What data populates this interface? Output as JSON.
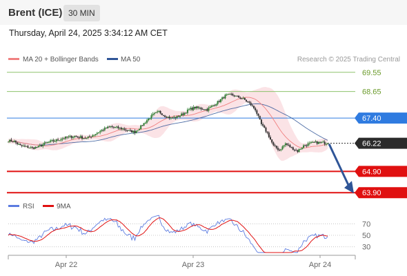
{
  "header": {
    "instrument": "Brent (ICE)",
    "timeframe": "30 MIN",
    "datetime": "Thursday, April 24, 2025 3:34:12 AM CET"
  },
  "legend": {
    "ma20": "MA 20 + Bollinger Bands",
    "ma50": "MA 50",
    "credit": "Research © 2025 Trading Central",
    "rsi": "RSI",
    "ma9": "9MA"
  },
  "colors": {
    "ma20": "#f08080",
    "ma50": "#2f5597",
    "bands": "#fadadd",
    "resistance": "#8dc26b",
    "pivot": "#2f7be0",
    "support": "#e01010",
    "current": "#2b2b2b",
    "arrow": "#2f5597",
    "rsi": "#5b7be0",
    "rsi_ma": "#e01010",
    "candle": "#2e7d32",
    "candle_down": "#333333"
  },
  "chart_data": [
    {
      "type": "candlestick",
      "title": "Brent (ICE) 30 MIN",
      "ylim": [
        63.55,
        69.9
      ],
      "x_ticks": [
        "Apr 22",
        "Apr 23",
        "Apr 24"
      ],
      "levels": [
        {
          "value": 69.55,
          "label": "69.55",
          "role": "resistance"
        },
        {
          "value": 68.65,
          "label": "68.65",
          "role": "resistance"
        },
        {
          "value": 67.4,
          "label": "67.40",
          "role": "pivot"
        },
        {
          "value": 66.22,
          "label": "66.22",
          "role": "current"
        },
        {
          "value": 64.9,
          "label": "64.90",
          "role": "support"
        },
        {
          "value": 63.9,
          "label": "63.90",
          "role": "support"
        }
      ],
      "close_profile": [
        [
          0,
          66.35
        ],
        [
          4,
          66.3
        ],
        [
          8,
          66.1
        ],
        [
          12,
          66.05
        ],
        [
          16,
          66.0
        ],
        [
          20,
          66.05
        ],
        [
          24,
          66.2
        ],
        [
          28,
          66.3
        ],
        [
          32,
          66.35
        ],
        [
          36,
          66.45
        ],
        [
          40,
          66.5
        ],
        [
          44,
          66.55
        ],
        [
          48,
          66.5
        ],
        [
          52,
          66.45
        ],
        [
          56,
          66.6
        ],
        [
          60,
          66.75
        ],
        [
          64,
          66.9
        ],
        [
          68,
          67.0
        ],
        [
          72,
          66.95
        ],
        [
          76,
          66.9
        ],
        [
          80,
          66.8
        ],
        [
          84,
          66.75
        ],
        [
          88,
          67.0
        ],
        [
          92,
          67.3
        ],
        [
          96,
          67.55
        ],
        [
          100,
          67.7
        ],
        [
          104,
          67.5
        ],
        [
          108,
          67.4
        ],
        [
          112,
          67.45
        ],
        [
          116,
          67.6
        ],
        [
          120,
          67.8
        ],
        [
          124,
          67.9
        ],
        [
          128,
          67.85
        ],
        [
          132,
          67.8
        ],
        [
          136,
          68.0
        ],
        [
          140,
          68.2
        ],
        [
          144,
          68.45
        ],
        [
          148,
          68.5
        ],
        [
          152,
          68.4
        ],
        [
          156,
          68.3
        ],
        [
          160,
          68.1
        ],
        [
          164,
          67.8
        ],
        [
          168,
          67.1
        ],
        [
          172,
          66.7
        ],
        [
          176,
          66.1
        ],
        [
          180,
          65.9
        ],
        [
          184,
          66.2
        ],
        [
          188,
          66.0
        ],
        [
          192,
          65.85
        ],
        [
          196,
          66.1
        ],
        [
          200,
          66.2
        ],
        [
          204,
          66.25
        ],
        [
          208,
          66.25
        ],
        [
          212,
          66.22
        ]
      ],
      "forecast_arrow": {
        "from": 66.22,
        "to": 63.9
      }
    },
    {
      "type": "line",
      "title": "RSI",
      "series": [
        {
          "name": "RSI"
        },
        {
          "name": "9MA"
        }
      ],
      "y_ticks": [
        70,
        50,
        30
      ],
      "ylim": [
        20,
        80
      ]
    }
  ]
}
